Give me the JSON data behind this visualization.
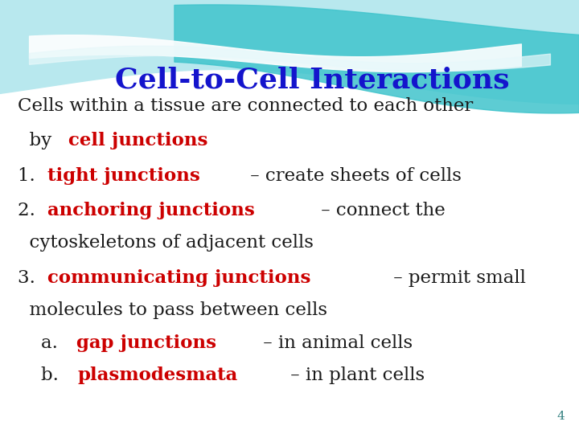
{
  "title": "Cell-to-Cell Interactions",
  "title_color": "#1414CC",
  "title_fontsize": 26,
  "background_color": "#FFFFFF",
  "text_black": "#1a1a1a",
  "text_red": "#CC0000",
  "body_fontsize": 16.5,
  "page_number": "4",
  "page_number_color": "#2E7D7D",
  "lines": [
    {
      "parts": [
        {
          "text": "Cells within a tissue are connected to each other",
          "color": "#1a1a1a",
          "bold": false
        }
      ],
      "indent": 0.03
    },
    {
      "parts": [
        {
          "text": "  by ",
          "color": "#1a1a1a",
          "bold": false
        },
        {
          "text": "cell junctions",
          "color": "#CC0000",
          "bold": true
        }
      ],
      "indent": 0.03
    },
    {
      "parts": [
        {
          "text": "1. ",
          "color": "#1a1a1a",
          "bold": false
        },
        {
          "text": "tight junctions",
          "color": "#CC0000",
          "bold": true
        },
        {
          "text": " – create sheets of cells",
          "color": "#1a1a1a",
          "bold": false
        }
      ],
      "indent": 0.03
    },
    {
      "parts": [
        {
          "text": "2. ",
          "color": "#1a1a1a",
          "bold": false
        },
        {
          "text": "anchoring junctions",
          "color": "#CC0000",
          "bold": true
        },
        {
          "text": " – connect the",
          "color": "#1a1a1a",
          "bold": false
        }
      ],
      "indent": 0.03
    },
    {
      "parts": [
        {
          "text": "  cytoskeletons of adjacent cells",
          "color": "#1a1a1a",
          "bold": false
        }
      ],
      "indent": 0.03
    },
    {
      "parts": [
        {
          "text": "3. ",
          "color": "#1a1a1a",
          "bold": false
        },
        {
          "text": "communicating junctions",
          "color": "#CC0000",
          "bold": true
        },
        {
          "text": " – permit small",
          "color": "#1a1a1a",
          "bold": false
        }
      ],
      "indent": 0.03
    },
    {
      "parts": [
        {
          "text": "  molecules to pass between cells",
          "color": "#1a1a1a",
          "bold": false
        }
      ],
      "indent": 0.03
    },
    {
      "parts": [
        {
          "text": "    a. ",
          "color": "#1a1a1a",
          "bold": false
        },
        {
          "text": "gap junctions",
          "color": "#CC0000",
          "bold": true
        },
        {
          "text": " – in animal cells",
          "color": "#1a1a1a",
          "bold": false
        }
      ],
      "indent": 0.03
    },
    {
      "parts": [
        {
          "text": "    b. ",
          "color": "#1a1a1a",
          "bold": false
        },
        {
          "text": "plasmodesmata",
          "color": "#CC0000",
          "bold": true
        },
        {
          "text": " – in plant cells",
          "color": "#1a1a1a",
          "bold": false
        }
      ],
      "indent": 0.03
    }
  ]
}
